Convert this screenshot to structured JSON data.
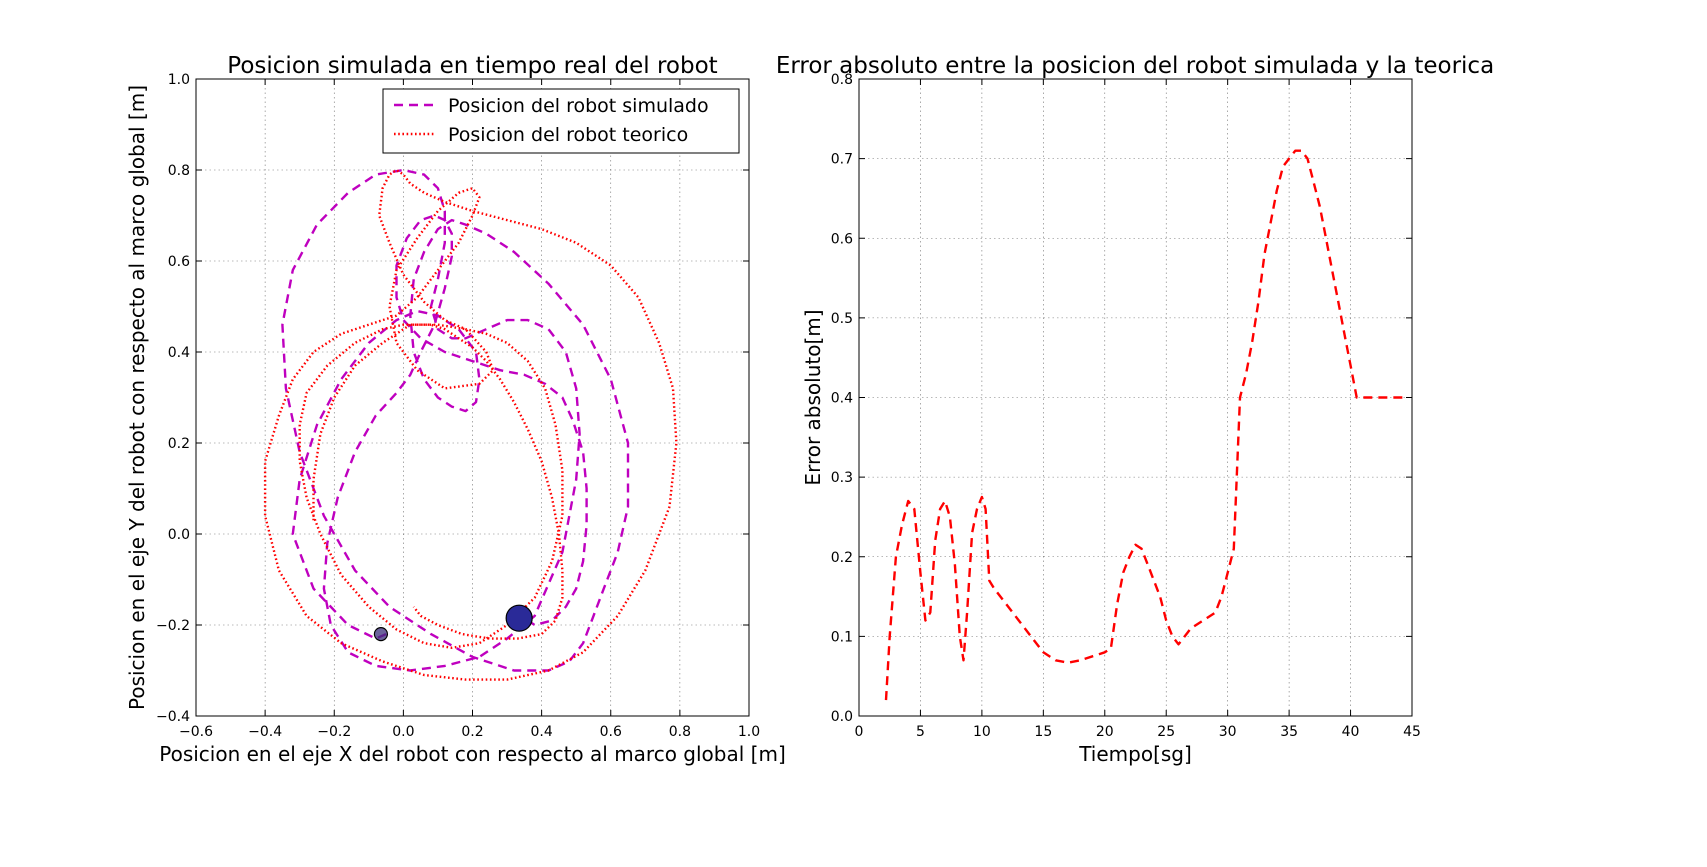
{
  "chart_data": [
    {
      "type": "line",
      "title": "Posicion simulada en tiempo real del robot",
      "xlabel": "Posicion en el eje X del robot con respecto al marco global [m]",
      "ylabel": "Posicion en el eje Y del robot con respecto al marco global [m]",
      "xlim": [
        -0.6,
        1.0
      ],
      "ylim": [
        -0.4,
        1.0
      ],
      "xticks": [
        -0.6,
        -0.4,
        -0.2,
        0.0,
        0.2,
        0.4,
        0.6,
        0.8,
        1.0
      ],
      "yticks": [
        -0.4,
        -0.2,
        0.0,
        0.2,
        0.4,
        0.6,
        0.8,
        1.0
      ],
      "grid": true,
      "legend": "top-right",
      "series": [
        {
          "name": "Posicion del robot simulado",
          "color": "#BF00BF",
          "style": "dashed",
          "x": [
            -0.05,
            -0.08,
            -0.16,
            -0.26,
            -0.32,
            -0.3,
            -0.25,
            -0.18,
            -0.1,
            -0.02,
            0.04,
            0.1,
            0.16,
            0.21,
            0.22,
            0.21,
            0.18,
            0.14,
            0.1,
            0.06,
            0.03,
            0.02,
            0.03,
            0.06,
            0.1,
            0.14,
            0.18,
            0.24,
            0.32,
            0.42,
            0.52,
            0.6,
            0.65,
            0.65,
            0.62,
            0.58,
            0.55,
            0.52,
            0.48,
            0.42,
            0.32,
            0.2,
            0.08,
            -0.04,
            -0.14,
            -0.23,
            -0.3,
            -0.34,
            -0.35,
            -0.32,
            -0.25,
            -0.16,
            -0.08,
            0.0,
            0.06,
            0.1,
            0.12,
            0.12,
            0.1,
            0.08,
            0.1,
            0.14,
            0.18,
            0.24,
            0.3,
            0.36,
            0.42,
            0.47,
            0.5,
            0.51,
            0.5,
            0.48,
            0.46,
            0.42,
            0.38,
            0.3,
            0.22,
            0.12,
            0.02,
            -0.08,
            -0.16,
            -0.21,
            -0.23,
            -0.22,
            -0.19,
            -0.14,
            -0.08,
            -0.02,
            0.02,
            0.05,
            0.09,
            0.12,
            0.14,
            0.14,
            0.12,
            0.09,
            0.05,
            0.01,
            -0.02,
            -0.02,
            0.0,
            0.05,
            0.12,
            0.2,
            0.28,
            0.35,
            0.41,
            0.46,
            0.49,
            0.52,
            0.53,
            0.53,
            0.52,
            0.5,
            0.47,
            0.43,
            0.38,
            0.34
          ],
          "y": [
            -0.22,
            -0.23,
            -0.2,
            -0.12,
            0.0,
            0.12,
            0.24,
            0.34,
            0.42,
            0.47,
            0.49,
            0.48,
            0.45,
            0.4,
            0.34,
            0.29,
            0.27,
            0.28,
            0.3,
            0.34,
            0.4,
            0.48,
            0.56,
            0.62,
            0.67,
            0.69,
            0.68,
            0.66,
            0.62,
            0.55,
            0.46,
            0.34,
            0.2,
            0.06,
            -0.04,
            -0.12,
            -0.18,
            -0.24,
            -0.28,
            -0.3,
            -0.3,
            -0.27,
            -0.22,
            -0.16,
            -0.08,
            0.04,
            0.18,
            0.32,
            0.46,
            0.58,
            0.68,
            0.75,
            0.79,
            0.8,
            0.79,
            0.76,
            0.71,
            0.64,
            0.56,
            0.5,
            0.45,
            0.43,
            0.43,
            0.45,
            0.47,
            0.47,
            0.45,
            0.4,
            0.32,
            0.22,
            0.12,
            0.04,
            -0.04,
            -0.11,
            -0.18,
            -0.23,
            -0.27,
            -0.29,
            -0.3,
            -0.29,
            -0.26,
            -0.2,
            -0.12,
            -0.02,
            0.08,
            0.18,
            0.26,
            0.31,
            0.35,
            0.4,
            0.46,
            0.54,
            0.61,
            0.66,
            0.69,
            0.7,
            0.69,
            0.65,
            0.59,
            0.52,
            0.47,
            0.43,
            0.4,
            0.38,
            0.36,
            0.35,
            0.33,
            0.3,
            0.25,
            0.18,
            0.1,
            0.02,
            -0.06,
            -0.12,
            -0.16,
            -0.19,
            -0.2,
            -0.18
          ]
        },
        {
          "name": "Posicion del robot teorico",
          "color": "#FF0000",
          "style": "dotted",
          "x": [
            -0.26,
            -0.26,
            -0.24,
            -0.2,
            -0.14,
            -0.06,
            0.02,
            0.1,
            0.18,
            0.24,
            0.26,
            0.22,
            0.12,
            0.04,
            -0.02,
            -0.04,
            -0.02,
            0.04,
            0.1,
            0.16,
            0.2,
            0.22,
            0.2,
            0.16,
            0.1,
            0.04,
            -0.02,
            -0.1,
            -0.18,
            -0.26,
            -0.32,
            -0.36,
            -0.4,
            -0.4,
            -0.36,
            -0.28,
            -0.18,
            -0.06,
            0.06,
            0.18,
            0.3,
            0.42,
            0.52,
            0.62,
            0.7,
            0.77,
            0.79,
            0.78,
            0.74,
            0.68,
            0.6,
            0.5,
            0.4,
            0.3,
            0.2,
            0.12,
            0.06,
            0.02,
            0.0,
            -0.02,
            -0.04,
            -0.06,
            -0.07,
            -0.04,
            0.0,
            0.06,
            0.12,
            0.18,
            0.24,
            0.3,
            0.36,
            0.41,
            0.44,
            0.46,
            0.46,
            0.43,
            0.38,
            0.3,
            0.22,
            0.14,
            0.06,
            -0.02,
            -0.1,
            -0.18,
            -0.24,
            -0.28,
            -0.3,
            -0.3,
            -0.28,
            -0.22,
            -0.14,
            -0.06,
            0.0,
            0.04,
            0.08,
            0.12,
            0.16,
            0.2,
            0.24,
            0.28,
            0.32,
            0.36,
            0.4,
            0.43,
            0.45,
            0.46,
            0.46,
            0.44,
            0.4,
            0.33,
            0.25,
            0.17,
            0.1,
            0.05,
            0.03
          ],
          "y": [
            0.03,
            0.12,
            0.22,
            0.3,
            0.37,
            0.42,
            0.46,
            0.46,
            0.45,
            0.4,
            0.36,
            0.33,
            0.32,
            0.36,
            0.42,
            0.5,
            0.58,
            0.65,
            0.71,
            0.75,
            0.76,
            0.74,
            0.7,
            0.64,
            0.58,
            0.52,
            0.48,
            0.46,
            0.44,
            0.4,
            0.34,
            0.26,
            0.16,
            0.04,
            -0.08,
            -0.18,
            -0.24,
            -0.28,
            -0.31,
            -0.32,
            -0.32,
            -0.3,
            -0.26,
            -0.18,
            -0.08,
            0.06,
            0.2,
            0.32,
            0.42,
            0.52,
            0.59,
            0.64,
            0.67,
            0.69,
            0.71,
            0.73,
            0.75,
            0.77,
            0.79,
            0.8,
            0.79,
            0.76,
            0.7,
            0.64,
            0.57,
            0.51,
            0.47,
            0.45,
            0.44,
            0.42,
            0.38,
            0.32,
            0.24,
            0.14,
            0.04,
            -0.06,
            -0.14,
            -0.2,
            -0.24,
            -0.25,
            -0.24,
            -0.21,
            -0.16,
            -0.09,
            0.0,
            0.08,
            0.16,
            0.24,
            0.31,
            0.37,
            0.42,
            0.45,
            0.46,
            0.46,
            0.46,
            0.45,
            0.43,
            0.41,
            0.38,
            0.34,
            0.29,
            0.23,
            0.16,
            0.08,
            0.0,
            -0.08,
            -0.14,
            -0.19,
            -0.22,
            -0.23,
            -0.23,
            -0.22,
            -0.2,
            -0.18,
            -0.16
          ]
        }
      ],
      "markers": [
        {
          "x": -0.065,
          "y": -0.22,
          "color": "#3A2D7A",
          "size": "small"
        },
        {
          "x": 0.335,
          "y": -0.185,
          "color": "#2A2A98",
          "size": "large"
        }
      ]
    },
    {
      "type": "line",
      "title": "Error absoluto entre la posicion del robot simulada y la teorica",
      "xlabel": "Tiempo[sg]",
      "ylabel": "Error absoluto[m]",
      "xlim": [
        0,
        45
      ],
      "ylim": [
        0.0,
        0.8
      ],
      "xticks": [
        0,
        5,
        10,
        15,
        20,
        25,
        30,
        35,
        40,
        45
      ],
      "yticks": [
        0.0,
        0.1,
        0.2,
        0.3,
        0.4,
        0.5,
        0.6,
        0.7,
        0.8
      ],
      "grid": true,
      "series": [
        {
          "color": "#FF0000",
          "style": "dashed",
          "x": [
            2.2,
            2.5,
            3.0,
            3.5,
            4.0,
            4.5,
            5.0,
            5.4,
            5.8,
            6.2,
            6.6,
            7.0,
            7.4,
            7.8,
            8.2,
            8.5,
            8.8,
            9.2,
            9.6,
            10.0,
            10.3,
            10.6,
            11.0,
            12.0,
            13.0,
            14.0,
            15.0,
            16.0,
            17.0,
            18.0,
            19.0,
            20.0,
            20.5,
            21.0,
            21.5,
            22.0,
            22.5,
            23.0,
            23.5,
            24.0,
            24.5,
            25.0,
            25.5,
            26.0,
            26.5,
            27.0,
            28.0,
            29.0,
            29.5,
            30.0,
            30.5,
            31.0,
            31.5,
            32.0,
            32.5,
            33.0,
            33.5,
            34.0,
            34.5,
            35.0,
            35.5,
            36.0,
            36.5,
            37.0,
            37.5,
            38.0,
            38.5,
            39.0,
            39.5,
            40.0,
            40.5,
            40.8,
            41.0,
            42.0,
            43.0,
            44.0,
            44.5
          ],
          "y": [
            0.02,
            0.1,
            0.2,
            0.24,
            0.27,
            0.26,
            0.18,
            0.12,
            0.13,
            0.22,
            0.26,
            0.27,
            0.25,
            0.19,
            0.1,
            0.07,
            0.13,
            0.23,
            0.26,
            0.275,
            0.26,
            0.17,
            0.16,
            0.14,
            0.12,
            0.1,
            0.08,
            0.07,
            0.067,
            0.07,
            0.075,
            0.08,
            0.085,
            0.14,
            0.18,
            0.2,
            0.215,
            0.21,
            0.19,
            0.17,
            0.15,
            0.12,
            0.1,
            0.09,
            0.1,
            0.11,
            0.12,
            0.13,
            0.15,
            0.18,
            0.21,
            0.4,
            0.43,
            0.47,
            0.52,
            0.58,
            0.62,
            0.66,
            0.69,
            0.7,
            0.71,
            0.71,
            0.7,
            0.67,
            0.64,
            0.6,
            0.56,
            0.52,
            0.48,
            0.44,
            0.4,
            0.4,
            0.4,
            0.4,
            0.4,
            0.4,
            0.4
          ]
        }
      ]
    }
  ]
}
